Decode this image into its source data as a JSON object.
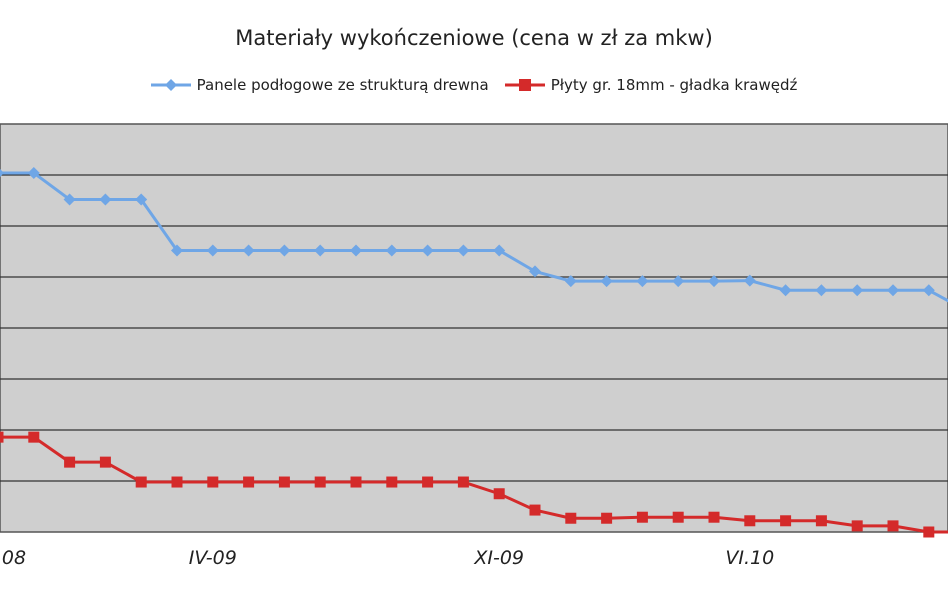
{
  "chart_data": {
    "type": "line",
    "title": "Materiały wykończeniowe (cena w zł za mkw)",
    "xlabel": "",
    "ylabel": "",
    "x_tick_labels": [
      "08",
      "IV-09",
      "XI-09",
      "VI.10"
    ],
    "x_tick_positions": [
      0,
      6,
      14,
      21
    ],
    "ylim": [
      0,
      8
    ],
    "grid": true,
    "legend": "top",
    "series": [
      {
        "name": "Panele podłogowe ze strukturą drewna",
        "color": "#6fa6e6",
        "marker": "diamond",
        "values": [
          7.04,
          7.04,
          6.52,
          6.52,
          6.52,
          5.52,
          5.52,
          5.52,
          5.52,
          5.52,
          5.52,
          5.52,
          5.52,
          5.52,
          5.52,
          5.11,
          4.92,
          4.92,
          4.92,
          4.92,
          4.92,
          4.93,
          4.74,
          4.74,
          4.74,
          4.74,
          4.74,
          4.36
        ]
      },
      {
        "name": "Płyty gr. 18mm - gładka krawędź",
        "color": "#d42a2a",
        "marker": "square",
        "values": [
          1.86,
          1.86,
          1.37,
          1.37,
          0.98,
          0.98,
          0.98,
          0.98,
          0.98,
          0.98,
          0.98,
          0.98,
          0.98,
          0.98,
          0.75,
          0.43,
          0.27,
          0.27,
          0.29,
          0.29,
          0.29,
          0.22,
          0.22,
          0.22,
          0.12,
          0.12,
          0.0,
          0.0
        ]
      }
    ]
  }
}
